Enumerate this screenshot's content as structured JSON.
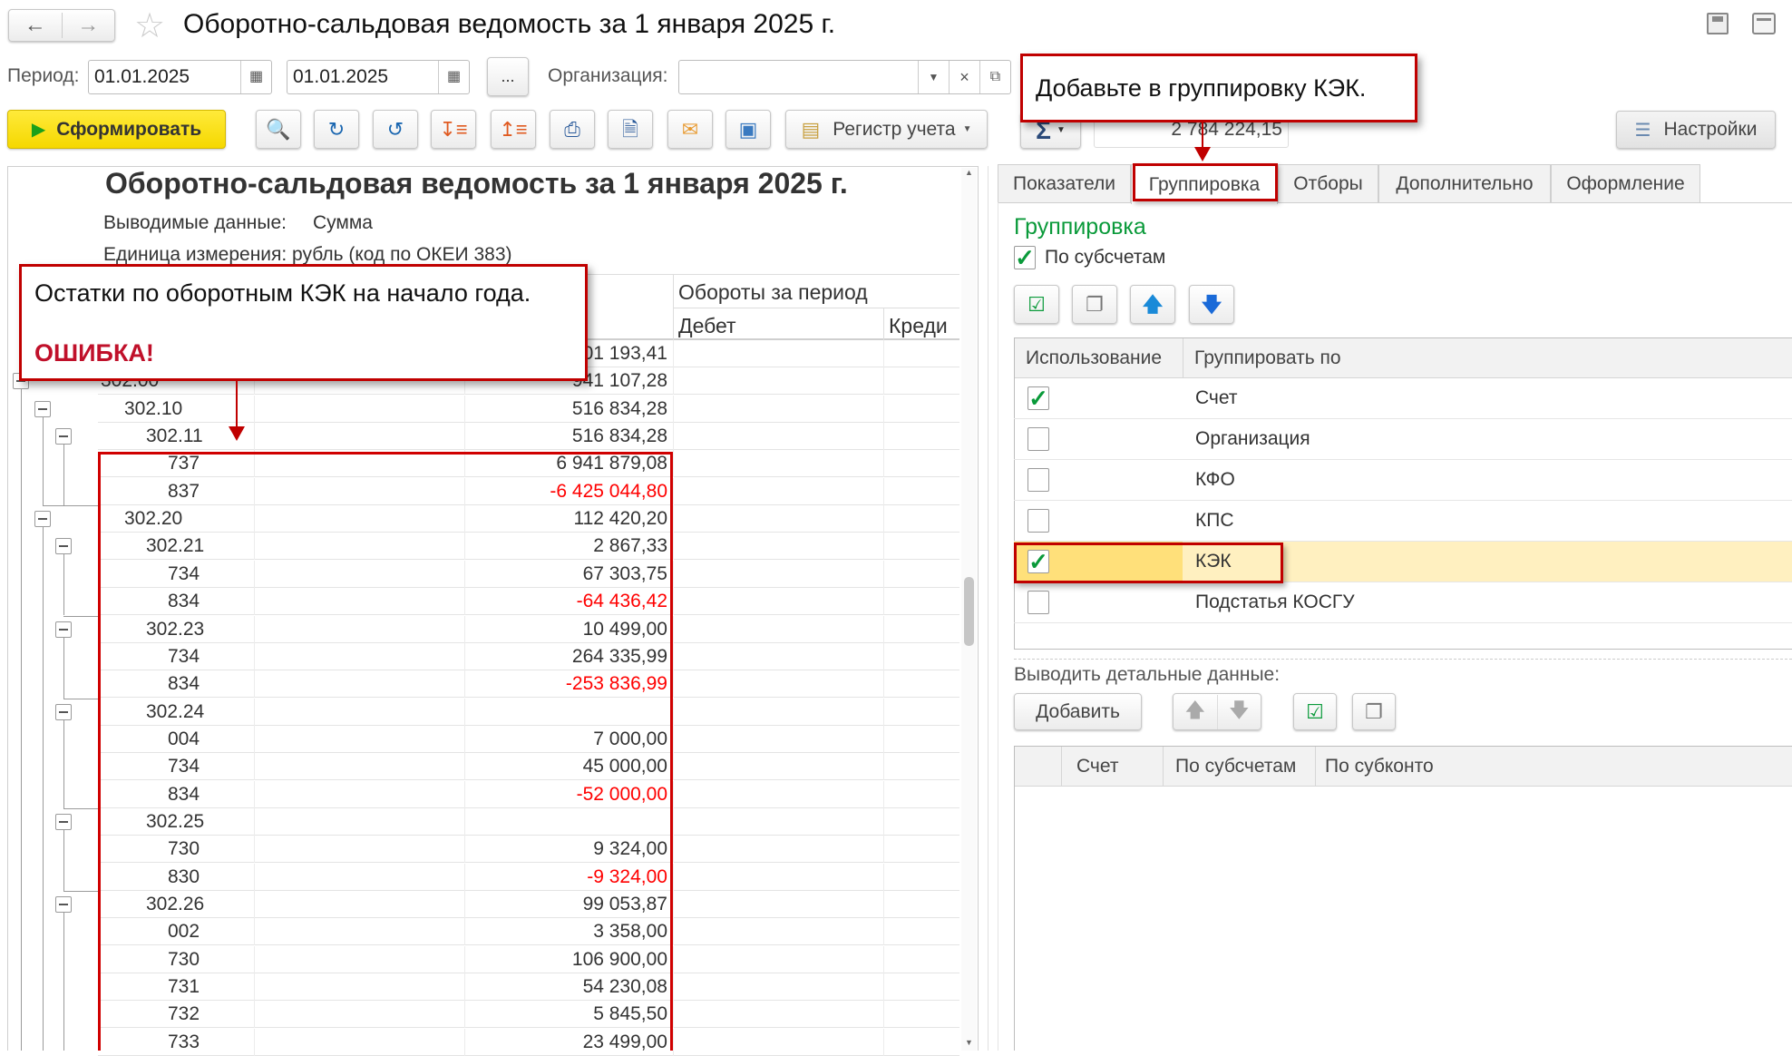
{
  "window": {
    "title": "Оборотно-сальдовая ведомость за 1 января 2025 г.",
    "icons": [
      "arrow-left-icon",
      "arrow-right-icon",
      "star-icon",
      "save-icon",
      "print-icon"
    ]
  },
  "filters": {
    "period_label": "Период:",
    "date_from": "01.01.2025",
    "date_to": "01.01.2025",
    "ellipsis_label": "...",
    "org_label": "Организация:",
    "org_value": ""
  },
  "toolbar": {
    "generate_label": "Сформировать",
    "register_label": "Регистр учета",
    "sum_symbol": "Σ",
    "sum_value": "2 784 224,15",
    "settings_label": "Настройки",
    "accent": "#ffe100"
  },
  "report": {
    "title": "Оборотно-сальдовая ведомость за 1 января 2025 г.",
    "output_label": "Выводимые данные:",
    "output_value": "Сумма",
    "unit": "Единица измерения: рубль (код по ОКЕИ 383)",
    "turnover_header": "Обороты за период",
    "debit_header": "Дебет",
    "credit_header": "Креди",
    "rows": [
      {
        "level": 0,
        "account": "",
        "value": "01 193,41",
        "negative": false,
        "toggle": false
      },
      {
        "level": 0,
        "account": "302.00",
        "value": "941 107,28",
        "negative": false,
        "toggle": true
      },
      {
        "level": 1,
        "account": "302.10",
        "value": "516 834,28",
        "negative": false,
        "toggle": true
      },
      {
        "level": 2,
        "account": "302.11",
        "value": "516 834,28",
        "negative": false,
        "toggle": true
      },
      {
        "level": 3,
        "account": "737",
        "value": "6 941 879,08",
        "negative": false,
        "toggle": false
      },
      {
        "level": 3,
        "account": "837",
        "value": "-6 425 044,80",
        "negative": true,
        "toggle": false
      },
      {
        "level": 1,
        "account": "302.20",
        "value": "112 420,20",
        "negative": false,
        "toggle": true
      },
      {
        "level": 2,
        "account": "302.21",
        "value": "2 867,33",
        "negative": false,
        "toggle": true
      },
      {
        "level": 3,
        "account": "734",
        "value": "67 303,75",
        "negative": false,
        "toggle": false
      },
      {
        "level": 3,
        "account": "834",
        "value": "-64 436,42",
        "negative": true,
        "toggle": false
      },
      {
        "level": 2,
        "account": "302.23",
        "value": "10 499,00",
        "negative": false,
        "toggle": true
      },
      {
        "level": 3,
        "account": "734",
        "value": "264 335,99",
        "negative": false,
        "toggle": false
      },
      {
        "level": 3,
        "account": "834",
        "value": "-253 836,99",
        "negative": true,
        "toggle": false
      },
      {
        "level": 2,
        "account": "302.24",
        "value": "",
        "negative": false,
        "toggle": true
      },
      {
        "level": 3,
        "account": "004",
        "value": "7 000,00",
        "negative": false,
        "toggle": false
      },
      {
        "level": 3,
        "account": "734",
        "value": "45 000,00",
        "negative": false,
        "toggle": false
      },
      {
        "level": 3,
        "account": "834",
        "value": "-52 000,00",
        "negative": true,
        "toggle": false
      },
      {
        "level": 2,
        "account": "302.25",
        "value": "",
        "negative": false,
        "toggle": true
      },
      {
        "level": 3,
        "account": "730",
        "value": "9 324,00",
        "negative": false,
        "toggle": false
      },
      {
        "level": 3,
        "account": "830",
        "value": "-9 324,00",
        "negative": true,
        "toggle": false
      },
      {
        "level": 2,
        "account": "302.26",
        "value": "99 053,87",
        "negative": false,
        "toggle": true
      },
      {
        "level": 3,
        "account": "002",
        "value": "3 358,00",
        "negative": false,
        "toggle": false
      },
      {
        "level": 3,
        "account": "730",
        "value": "106 900,00",
        "negative": false,
        "toggle": false
      },
      {
        "level": 3,
        "account": "731",
        "value": "54 230,08",
        "negative": false,
        "toggle": false
      },
      {
        "level": 3,
        "account": "732",
        "value": "5 845,50",
        "negative": false,
        "toggle": false
      },
      {
        "level": 3,
        "account": "733",
        "value": "23 499,00",
        "negative": false,
        "toggle": false
      }
    ],
    "negative_color": "#ff0000"
  },
  "settings": {
    "tabs": [
      "Показатели",
      "Группировка",
      "Отборы",
      "Дополнительно",
      "Оформление"
    ],
    "active_tab": "Группировка",
    "heading": "Группировка",
    "by_subaccounts_label": "По субсчетам",
    "by_subaccounts_checked": true,
    "grouping_headers": [
      "Использование",
      "Группировать по"
    ],
    "grouping_rows": [
      {
        "checked": true,
        "label": "Счет"
      },
      {
        "checked": false,
        "label": "Организация"
      },
      {
        "checked": false,
        "label": "КФО"
      },
      {
        "checked": false,
        "label": "КПС"
      },
      {
        "checked": true,
        "label": "КЭК",
        "selected": true
      },
      {
        "checked": false,
        "label": "Подстатья КОСГУ"
      }
    ],
    "detail_label": "Выводить детальные данные:",
    "add_label": "Добавить",
    "detail_headers": [
      "Счет",
      "По субсчетам",
      "По субконто"
    ],
    "heading_color": "#0a9a3a",
    "selected_row_color": "#fff0c0"
  },
  "annotations": {
    "top_callout": "Добавьте в группировку КЭК.",
    "left_callout": "Остатки по оборотным КЭК на начало года.",
    "left_callout_error": "ОШИБКА!",
    "annotation_color": "#c00000"
  }
}
